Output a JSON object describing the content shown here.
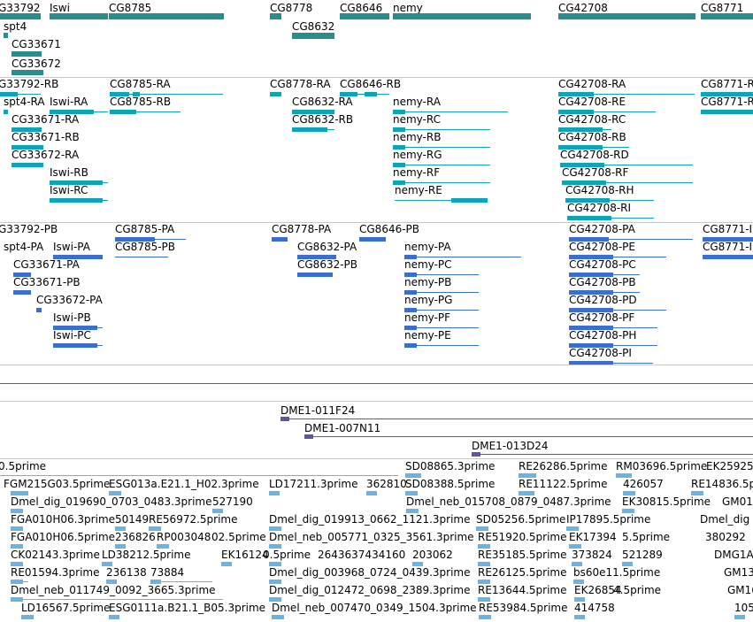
{
  "colors": {
    "gene": "#2a8d8d",
    "transcript": "#0aa6b8",
    "protein": "#3a6fd0",
    "clone": "#6650a8",
    "est": "#6ab4e2",
    "separator": "#c8c8c8"
  },
  "tracks": {
    "genes": {
      "labels": [
        "G33792",
        "Iswi",
        "CG8785",
        "CG8778",
        "CG8646",
        "nemy",
        "CG42708",
        "CG8771",
        "spt4",
        "CG8632",
        "CG33671",
        "CG33672"
      ]
    },
    "transcripts": {
      "labels": [
        "G33792-RB",
        "CG8785-RA",
        "CG8778-RA",
        "CG8646-RB",
        "CG42708-RA",
        "CG8771-R",
        "spt4-RA",
        "Iswi-RA",
        "CG8785-RB",
        "CG8632-RA",
        "nemy-RA",
        "CG42708-RE",
        "CG8771-R",
        "CG33671-RA",
        "CG8632-RB",
        "nemy-RC",
        "CG42708-RC",
        "CG33671-RB",
        "nemy-RB",
        "CG42708-RB",
        "CG33672-RA",
        "nemy-RG",
        "CG42708-RD",
        "Iswi-RB",
        "nemy-RF",
        "CG42708-RF",
        "Iswi-RC",
        "nemy-RE",
        "CG42708-RH",
        "CG42708-RI"
      ]
    },
    "proteins": {
      "labels": [
        "G33792-PB",
        "CG8785-PA",
        "CG8778-PA",
        "CG8646-PB",
        "CG42708-PA",
        "CG8771-I",
        "spt4-PA",
        "Iswi-PA",
        "CG8785-PB",
        "CG8632-PA",
        "nemy-PA",
        "CG42708-PE",
        "CG8771-I",
        "CG33671-PA",
        "CG8632-PB",
        "nemy-PC",
        "CG42708-PC",
        "CG33671-PB",
        "nemy-PB",
        "CG42708-PB",
        "CG33672-PA",
        "nemy-PG",
        "CG42708-PD",
        "Iswi-PB",
        "nemy-PF",
        "CG42708-PF",
        "Iswi-PC",
        "nemy-PE",
        "CG42708-PH",
        "CG42708-PI"
      ]
    },
    "clones": {
      "labels": [
        "DME1-011F24",
        "DME1-007N11",
        "DME1-013D24"
      ]
    },
    "ests": {
      "labels": [
        "0.5prime",
        "SD08865.3prime",
        "RE26286.5prime",
        "RM03696.5prime",
        "EK25925",
        "FGM215G03.5prime",
        "ESG013a.E21.1_H02.3prime",
        "LD17211.3prime",
        "362810",
        "SD08388.5prime",
        "RE11122.5prime",
        "426057",
        "RE14836.5prime",
        "Dmel_dig_019690_0703_0483.3prime",
        "527190",
        "Dmel_neb_015708_0879_0487.3prime",
        "EK30815.5prime",
        "GM01",
        "FGA010H06.3prime",
        "50149",
        "RE56972.5prime",
        "Dmel_dig_019913_0662_1121.3prime",
        "SD05256.5prime",
        "IP17895.5prime",
        "Dmel_dig",
        "FGA010H06.5prime",
        "236826",
        "RP003048",
        "02.5prime",
        "Dmel_neb_005771_0325_3561.3prime",
        "RE51920.5prime",
        "EK17394",
        "5.5prime",
        "380292",
        "CK02143.3prime",
        "LD38212.5prime",
        "EK16124",
        "0.5prime",
        "2643637434160",
        "203062",
        "RE35185.5prime",
        "373824",
        "521289",
        "DMG1A",
        "RE01594.3prime",
        "236138",
        "73884",
        "Dmel_dig_003968_0724_0439.3prime",
        "RE26125.5prime",
        "bs60e11.5prime",
        "GM13",
        "Dmel_neb_011749_0092_3665.3prime",
        "Dmel_dig_012472_0698_2389.3prime",
        "RE13644.5prime",
        "EK26854",
        "4.5prime",
        "GM16",
        "LD16567.5prime",
        "ESG0111a.B21.1_B05.3prime",
        "Dmel_neb_007470_0349_1504.3prime",
        "RE53984.5prime",
        "414758",
        "105"
      ]
    }
  }
}
